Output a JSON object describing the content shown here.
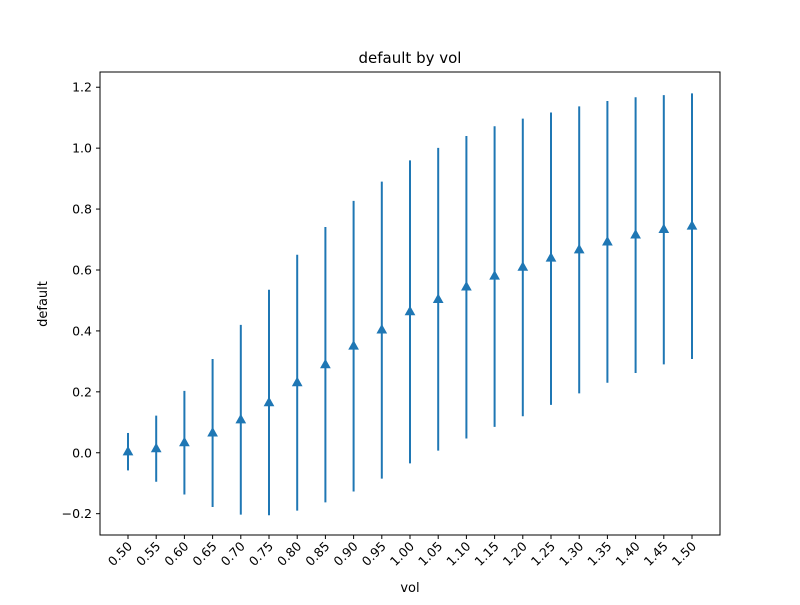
{
  "chart_data": {
    "type": "errorbar",
    "title": "default by vol",
    "xlabel": "vol",
    "ylabel": "default",
    "categories": [
      "0.50",
      "0.55",
      "0.60",
      "0.65",
      "0.70",
      "0.75",
      "0.80",
      "0.85",
      "0.90",
      "0.95",
      "1.00",
      "1.05",
      "1.10",
      "1.15",
      "1.20",
      "1.25",
      "1.30",
      "1.35",
      "1.40",
      "1.45",
      "1.50"
    ],
    "series": [
      {
        "marker": "triangle-up",
        "color": "#1f77b4",
        "values": [
          0.003,
          0.013,
          0.033,
          0.065,
          0.108,
          0.164,
          0.23,
          0.289,
          0.35,
          0.403,
          0.463,
          0.503,
          0.544,
          0.58,
          0.609,
          0.639,
          0.666,
          0.692,
          0.715,
          0.733,
          0.744
        ],
        "lower": [
          -0.058,
          -0.095,
          -0.137,
          -0.178,
          -0.203,
          -0.205,
          -0.19,
          -0.163,
          -0.127,
          -0.085,
          -0.035,
          0.007,
          0.047,
          0.085,
          0.12,
          0.157,
          0.195,
          0.23,
          0.262,
          0.29,
          0.308
        ],
        "upper": [
          0.065,
          0.122,
          0.203,
          0.308,
          0.42,
          0.535,
          0.65,
          0.741,
          0.827,
          0.89,
          0.96,
          1.001,
          1.04,
          1.072,
          1.097,
          1.117,
          1.137,
          1.155,
          1.167,
          1.174,
          1.18
        ]
      }
    ],
    "ylim": [
      -0.27,
      1.25
    ],
    "yticks": [
      -0.2,
      0.0,
      0.2,
      0.4,
      0.6,
      0.8,
      1.0,
      1.2
    ],
    "ytick_labels": [
      "−0.2",
      "0.0",
      "0.2",
      "0.4",
      "0.6",
      "0.8",
      "1.0",
      "1.2"
    ],
    "grid": false,
    "legend": "none"
  }
}
